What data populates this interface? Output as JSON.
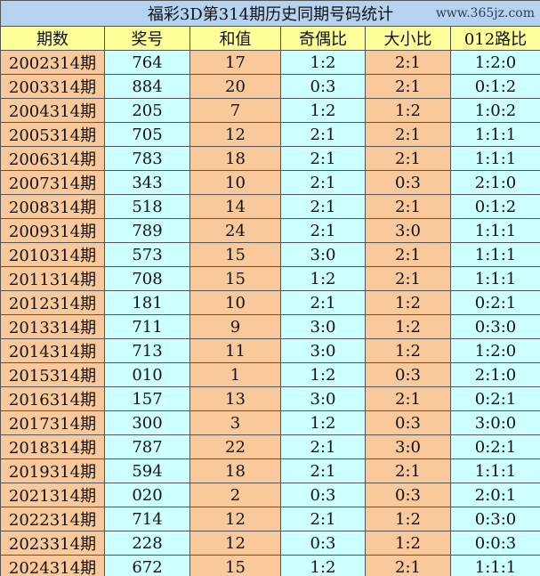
{
  "title": "福彩3D第314期历史同期号码统计",
  "headers": [
    "期数",
    "奖号",
    "和值",
    "奇偶比",
    "大小比",
    "012路比"
  ],
  "rows": [
    [
      "2002314期",
      "764",
      "17",
      "1:2",
      "2:1",
      "1:2:0"
    ],
    [
      "2003314期",
      "884",
      "20",
      "0:3",
      "2:1",
      "0:1:2"
    ],
    [
      "2004314期",
      "205",
      "7",
      "1:2",
      "1:2",
      "1:0:2"
    ],
    [
      "2005314期",
      "705",
      "12",
      "2:1",
      "2:1",
      "1:1:1"
    ],
    [
      "2006314期",
      "783",
      "18",
      "2:1",
      "2:1",
      "1:1:1"
    ],
    [
      "2007314期",
      "343",
      "10",
      "2:1",
      "0:3",
      "2:1:0"
    ],
    [
      "2008314期",
      "518",
      "14",
      "2:1",
      "2:1",
      "0:1:2"
    ],
    [
      "2009314期",
      "789",
      "24",
      "2:1",
      "3:0",
      "1:1:1"
    ],
    [
      "2010314期",
      "573",
      "15",
      "3:0",
      "2:1",
      "1:1:1"
    ],
    [
      "2011314期",
      "708",
      "15",
      "1:2",
      "2:1",
      "1:1:1"
    ],
    [
      "2012314期",
      "181",
      "10",
      "2:1",
      "1:2",
      "0:2:1"
    ],
    [
      "2013314期",
      "711",
      "9",
      "3:0",
      "1:2",
      "0:3:0"
    ],
    [
      "2014314期",
      "713",
      "11",
      "3:0",
      "1:2",
      "1:2:0"
    ],
    [
      "2015314期",
      "010",
      "1",
      "1:2",
      "0:3",
      "2:1:0"
    ],
    [
      "2016314期",
      "157",
      "13",
      "3:0",
      "2:1",
      "0:2:1"
    ],
    [
      "2017314期",
      "300",
      "3",
      "1:2",
      "0:3",
      "3:0:0"
    ],
    [
      "2018314期",
      "787",
      "22",
      "2:1",
      "3:0",
      "0:2:1"
    ],
    [
      "2019314期",
      "594",
      "18",
      "2:1",
      "2:1",
      "1:1:1"
    ],
    [
      "2021314期",
      "020",
      "2",
      "0:3",
      "0:3",
      "2:0:1"
    ],
    [
      "2022314期",
      "714",
      "12",
      "2:1",
      "1:2",
      "0:3:0"
    ],
    [
      "2023314期",
      "228",
      "12",
      "0:3",
      "1:2",
      "0:0:3"
    ],
    [
      "2024314期",
      "672",
      "15",
      "1:2",
      "2:1",
      "1:1:1"
    ]
  ],
  "watermark": "www.365jz.com",
  "colors": {
    "title_bg": "#B5D3F0",
    "header_bg": "#FFFF99",
    "orange": "#F9C99B",
    "cyan": "#CCFFFF"
  }
}
